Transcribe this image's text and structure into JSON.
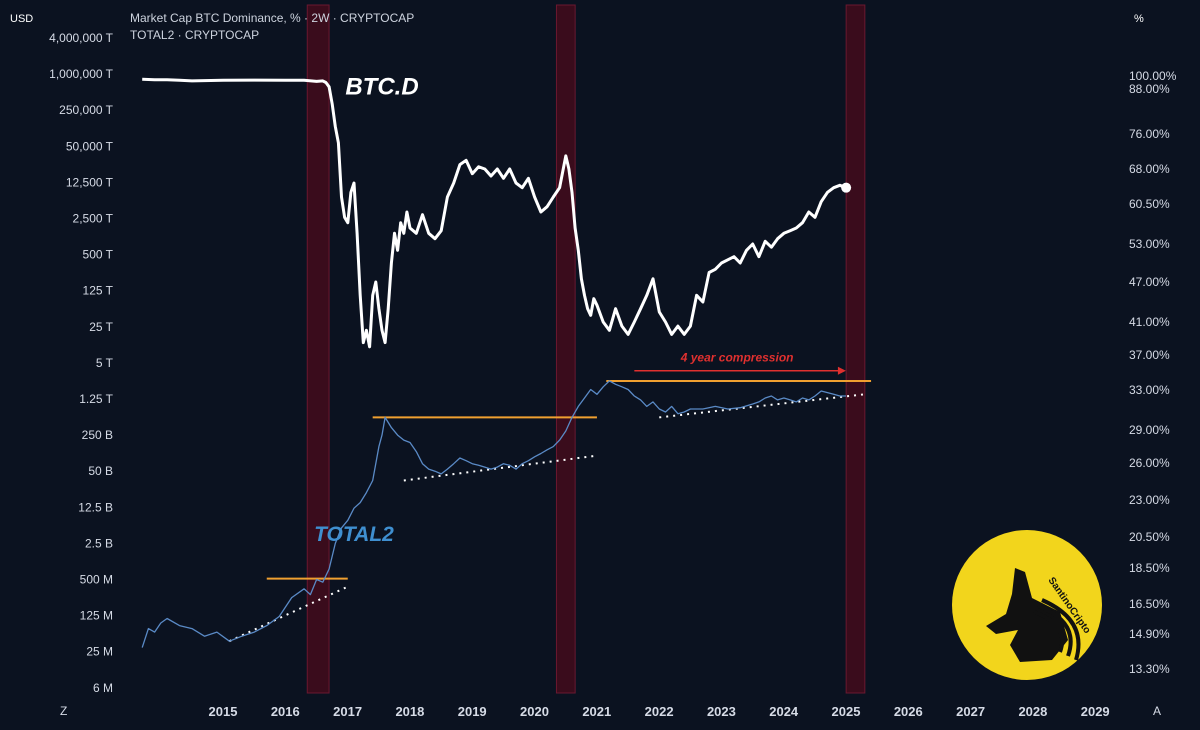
{
  "header": {
    "left_unit": "USD",
    "right_unit": "%",
    "line1": "Market Cap BTC Dominance, % · 2W · CRYPTOCAP",
    "line2": "TOTAL2 · CRYPTOCAP",
    "corner_left": "Z",
    "corner_right": "A"
  },
  "logo": {
    "text": "SantinoCripto",
    "colors": {
      "bg": "#f2d51c",
      "ink": "#111111"
    }
  },
  "colors": {
    "background": "#0b1220",
    "btcd": "#ffffff",
    "total2": "#5a8ac6",
    "resistance": "#f0a030",
    "support": "#ffffff",
    "annotation": "#e0302f",
    "band": "#3a0c1c",
    "band_border": "#6a1830"
  },
  "chart_data": {
    "type": "line",
    "x_axis": {
      "ticks": [
        "2015",
        "2016",
        "2017",
        "2018",
        "2019",
        "2020",
        "2021",
        "2022",
        "2023",
        "2024",
        "2025",
        "2026",
        "2027",
        "2028",
        "2029"
      ],
      "range": [
        2014.1,
        2029.4
      ]
    },
    "y_axis_left": {
      "label": "USD",
      "scale": "log",
      "ticks": [
        "4,000,000 T",
        "1,000,000 T",
        "250,000 T",
        "50,000 T",
        "12,500 T",
        "2,500 T",
        "500 T",
        "125 T",
        "25 T",
        "5 T",
        "1.25 T",
        "250 B",
        "50 B",
        "12.5 B",
        "2.5 B",
        "500 M",
        "125 M",
        "25 M",
        "6 M"
      ]
    },
    "y_axis_right": {
      "label": "%",
      "ticks": [
        "100.00%",
        "88.00%",
        "76.00%",
        "68.00%",
        "60.50%",
        "53.00%",
        "47.00%",
        "41.00%",
        "37.00%",
        "33.00%",
        "29.00%",
        "26.00%",
        "23.00%",
        "20.50%",
        "18.50%",
        "16.50%",
        "14.90%",
        "13.30%"
      ]
    },
    "series": [
      {
        "name": "BTC.D",
        "x": [
          2014.2,
          2014.4,
          2014.6,
          2014.8,
          2015.0,
          2015.5,
          2016.0,
          2016.5,
          2016.8,
          2017.0,
          2017.1,
          2017.15,
          2017.2,
          2017.25,
          2017.3,
          2017.35,
          2017.4,
          2017.45,
          2017.5,
          2017.55,
          2017.6,
          2017.65,
          2017.7,
          2017.75,
          2017.8,
          2017.85,
          2017.9,
          2017.95,
          2018.0,
          2018.05,
          2018.1,
          2018.15,
          2018.2,
          2018.25,
          2018.3,
          2018.35,
          2018.4,
          2018.45,
          2018.5,
          2018.6,
          2018.7,
          2018.8,
          2018.9,
          2019.0,
          2019.1,
          2019.2,
          2019.3,
          2019.4,
          2019.5,
          2019.6,
          2019.7,
          2019.8,
          2019.9,
          2020.0,
          2020.1,
          2020.2,
          2020.3,
          2020.4,
          2020.5,
          2020.6,
          2020.7,
          2020.8,
          2020.9,
          2021.0,
          2021.05,
          2021.1,
          2021.15,
          2021.2,
          2021.25,
          2021.3,
          2021.35,
          2021.4,
          2021.45,
          2021.5,
          2021.6,
          2021.7,
          2021.8,
          2021.9,
          2022.0,
          2022.1,
          2022.2,
          2022.3,
          2022.4,
          2022.5,
          2022.6,
          2022.7,
          2022.8,
          2022.9,
          2023.0,
          2023.1,
          2023.2,
          2023.3,
          2023.4,
          2023.5,
          2023.6,
          2023.7,
          2023.8,
          2023.9,
          2024.0,
          2024.1,
          2024.2,
          2024.3,
          2024.4,
          2024.5,
          2024.6,
          2024.7,
          2024.8,
          2024.9,
          2025.0,
          2025.1,
          2025.2,
          2025.3,
          2025.4,
          2025.5
        ],
        "values": [
          97.0,
          96.5,
          96.5,
          96.0,
          95.5,
          96.0,
          96.2,
          96.0,
          96.0,
          95.0,
          95.5,
          94.0,
          90.0,
          84.0,
          78.0,
          74.0,
          62.0,
          58.0,
          57.0,
          63.0,
          65.0,
          55.0,
          45.0,
          38.5,
          40.0,
          38.0,
          45.0,
          47.0,
          43.0,
          40.0,
          38.5,
          43.0,
          50.0,
          55.0,
          52.0,
          57.0,
          55.0,
          59.0,
          56.0,
          55.0,
          58.5,
          55.0,
          54.0,
          55.5,
          62.0,
          65.0,
          69.0,
          70.0,
          67.0,
          68.5,
          68.0,
          66.5,
          68.0,
          66.0,
          68.0,
          65.0,
          64.0,
          66.0,
          62.0,
          59.0,
          60.0,
          62.0,
          64.0,
          71.0,
          68.0,
          63.0,
          56.0,
          52.0,
          47.5,
          45.0,
          43.0,
          42.0,
          44.5,
          43.5,
          41.0,
          40.0,
          43.0,
          40.5,
          39.5,
          41.0,
          43.0,
          45.0,
          47.5,
          42.5,
          41.0,
          39.5,
          40.5,
          39.5,
          40.5,
          45.0,
          44.0,
          48.5,
          49.0,
          50.0,
          50.5,
          51.0,
          50.0,
          52.0,
          53.0,
          51.0,
          53.5,
          52.5,
          54.0,
          55.0,
          55.5,
          56.0,
          57.0,
          59.0,
          58.0,
          61.0,
          63.0,
          64.0,
          64.5,
          64.0
        ]
      },
      {
        "name": "TOTAL2",
        "x": [
          2014.2,
          2014.3,
          2014.4,
          2014.5,
          2014.6,
          2014.8,
          2015.0,
          2015.2,
          2015.4,
          2015.6,
          2015.8,
          2016.0,
          2016.2,
          2016.4,
          2016.6,
          2016.8,
          2016.9,
          2017.0,
          2017.1,
          2017.2,
          2017.3,
          2017.4,
          2017.5,
          2017.6,
          2017.7,
          2017.8,
          2017.9,
          2018.0,
          2018.05,
          2018.1,
          2018.2,
          2018.3,
          2018.4,
          2018.5,
          2018.6,
          2018.7,
          2018.8,
          2018.9,
          2019.0,
          2019.1,
          2019.2,
          2019.3,
          2019.4,
          2019.5,
          2019.6,
          2019.7,
          2019.8,
          2019.9,
          2020.0,
          2020.1,
          2020.2,
          2020.3,
          2020.4,
          2020.5,
          2020.6,
          2020.7,
          2020.8,
          2020.9,
          2021.0,
          2021.1,
          2021.2,
          2021.3,
          2021.4,
          2021.5,
          2021.6,
          2021.7,
          2021.8,
          2021.9,
          2022.0,
          2022.1,
          2022.2,
          2022.3,
          2022.4,
          2022.5,
          2022.6,
          2022.7,
          2022.8,
          2022.9,
          2023.0,
          2023.2,
          2023.4,
          2023.6,
          2023.8,
          2024.0,
          2024.1,
          2024.2,
          2024.3,
          2024.4,
          2024.5,
          2024.6,
          2024.7,
          2024.8,
          2024.9,
          2025.0,
          2025.1,
          2025.2,
          2025.3,
          2025.4,
          2025.5
        ],
        "values": [
          0.03,
          0.07,
          0.06,
          0.09,
          0.11,
          0.08,
          0.07,
          0.05,
          0.06,
          0.04,
          0.05,
          0.06,
          0.08,
          0.12,
          0.25,
          0.35,
          0.28,
          0.5,
          0.45,
          0.8,
          2.5,
          5,
          7,
          12,
          15,
          22,
          35,
          150,
          250,
          550,
          350,
          250,
          200,
          180,
          120,
          70,
          55,
          50,
          45,
          55,
          70,
          90,
          80,
          70,
          65,
          60,
          55,
          60,
          70,
          65,
          55,
          70,
          80,
          95,
          110,
          130,
          150,
          200,
          300,
          550,
          900,
          1300,
          1800,
          1500,
          2000,
          2500,
          2200,
          2000,
          1800,
          1400,
          1200,
          900,
          1100,
          800,
          700,
          900,
          650,
          700,
          800,
          800,
          900,
          800,
          850,
          1000,
          1100,
          1300,
          1400,
          1200,
          1300,
          1200,
          1100,
          1300,
          1200,
          1400,
          1700,
          1600,
          1500,
          1400,
          1400
        ]
      }
    ],
    "bands": [
      {
        "x": [
          2016.85,
          2017.2
        ]
      },
      {
        "x": [
          2020.85,
          2021.15
        ]
      },
      {
        "x": [
          2025.5,
          2025.8
        ]
      }
    ],
    "overlays": {
      "resistance_lines": [
        {
          "x": [
            2016.2,
            2017.5
          ],
          "y": [
            0.52,
            0.52
          ]
        },
        {
          "x": [
            2017.9,
            2021.5
          ],
          "y": [
            550,
            550
          ]
        },
        {
          "x": [
            2021.65,
            2025.9
          ],
          "y": [
            2500,
            2500
          ]
        }
      ],
      "support_lines": [
        {
          "x": [
            2015.6,
            2017.5
          ],
          "y": [
            0.04,
            0.38
          ]
        },
        {
          "x": [
            2018.4,
            2021.5
          ],
          "y": [
            35,
            100
          ]
        },
        {
          "x": [
            2022.5,
            2025.8
          ],
          "y": [
            550,
            1500
          ]
        }
      ],
      "compression_arrow": {
        "x": [
          2022.1,
          2025.4
        ],
        "y": 3700,
        "label": "4 year compression"
      }
    },
    "annotations": [
      {
        "text": "BTC.D",
        "x": 2018.05,
        "y_pct": 86.5
      },
      {
        "text": "TOTAL2",
        "x": 2017.6,
        "y_total2": 2.8
      }
    ],
    "grid": false,
    "legend": "top-left"
  }
}
